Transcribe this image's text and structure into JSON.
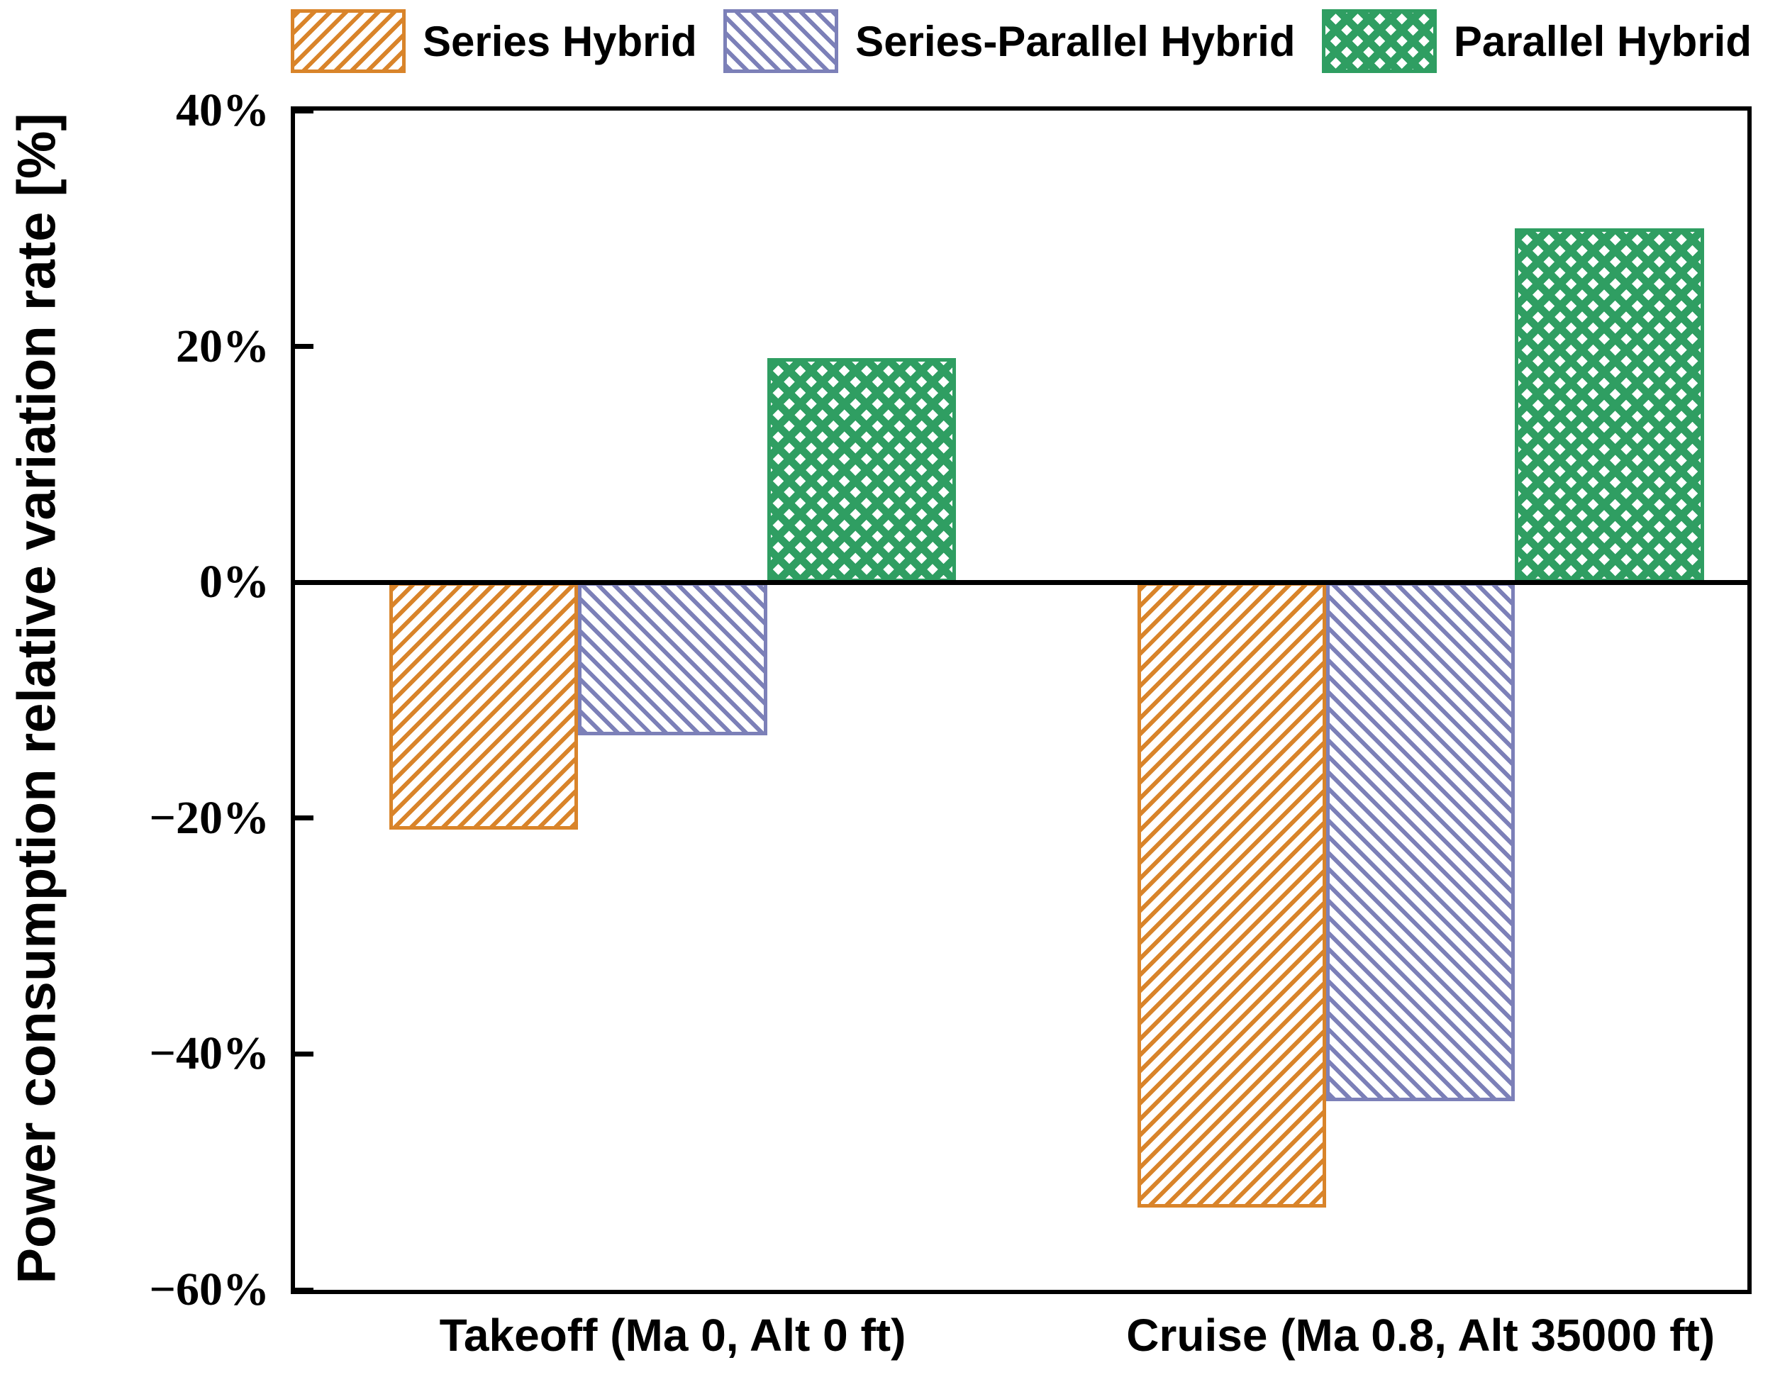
{
  "figure": {
    "background": "#ffffff",
    "axis_color": "#000000"
  },
  "chart_data": {
    "type": "bar",
    "title": "",
    "xlabel": "",
    "ylabel": "Power consumption relative variation rate [%]",
    "ylim": [
      -60,
      40
    ],
    "yticks": [
      40,
      20,
      0,
      -20,
      -40,
      -60
    ],
    "ytick_labels": [
      "40%",
      "20%",
      "0%",
      "−20%",
      "−40%",
      "−60%"
    ],
    "categories": [
      "Takeoff (Ma 0, Alt 0 ft)",
      "Cruise (Ma 0.8, Alt 35000 ft)"
    ],
    "series": [
      {
        "name": "Series Hybrid",
        "values": [
          -21,
          -53
        ],
        "color": "#D9842A",
        "hatch": "/"
      },
      {
        "name": "Series-Parallel Hybrid",
        "values": [
          -13,
          -44
        ],
        "color": "#7C80B8",
        "hatch": "\\"
      },
      {
        "name": "Parallel Hybrid",
        "values": [
          19,
          30
        ],
        "color": "#2F9E62",
        "hatch": "x"
      }
    ],
    "legend_position": "top",
    "grid": false
  }
}
